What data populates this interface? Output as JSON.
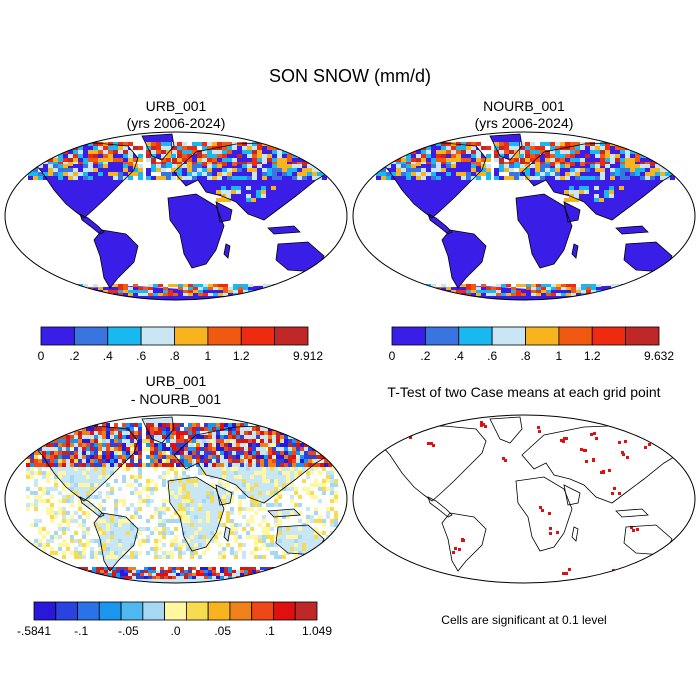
{
  "title": "SON SNOW (mm/d)",
  "panels": [
    {
      "id": "urb",
      "title_line1": "URB_001",
      "title_line2": "(yrs 2006-2024)",
      "colorbar": {
        "colors": [
          "#3a1ee8",
          "#3a74e0",
          "#1ab8f0",
          "#c8e6f4",
          "#f8b41e",
          "#f05a10",
          "#ee2a10",
          "#c02828"
        ],
        "tick_labels": [
          "0",
          ".2",
          ".4",
          ".6",
          ".8",
          "1",
          "1.2",
          "9.912"
        ]
      }
    },
    {
      "id": "nourb",
      "title_line1": "NOURB_001",
      "title_line2": "(yrs 2006-2024)",
      "colorbar": {
        "colors": [
          "#3a1ee8",
          "#3a74e0",
          "#1ab8f0",
          "#c8e6f4",
          "#f8b41e",
          "#f05a10",
          "#ee2a10",
          "#c02828"
        ],
        "tick_labels": [
          "0",
          ".2",
          ".4",
          ".6",
          ".8",
          "1",
          "1.2",
          "9.632"
        ]
      }
    },
    {
      "id": "diff",
      "title_line1": "URB_001",
      "title_line2": "- NOURB_001",
      "colorbar": {
        "colors": [
          "#2a18d8",
          "#2a42e0",
          "#2a72e8",
          "#1a96ee",
          "#50b8f0",
          "#a6d8f4",
          "#fff8a0",
          "#f8dc50",
          "#f8b41e",
          "#f08018",
          "#ee4818",
          "#e01010",
          "#c02828"
        ],
        "tick_labels": [
          "-.5841",
          "-.1",
          "-.05",
          ".0",
          ".05",
          ".1",
          "1.049"
        ]
      }
    },
    {
      "id": "ttest",
      "title_line1": "T-Test of two Case means at each grid point",
      "title_line2": "",
      "note": "Cells are significant at 0.1 level"
    }
  ],
  "chart_data": [
    {
      "type": "heatmap",
      "title": "URB_001 (yrs 2006-2024)",
      "projection": "Robinson",
      "variable": "SON SNOW (mm/d)",
      "levels": [
        0,
        0.2,
        0.4,
        0.6,
        0.8,
        1,
        1.2
      ],
      "max_value": 9.912
    },
    {
      "type": "heatmap",
      "title": "NOURB_001 (yrs 2006-2024)",
      "projection": "Robinson",
      "variable": "SON SNOW (mm/d)",
      "levels": [
        0,
        0.2,
        0.4,
        0.6,
        0.8,
        1,
        1.2
      ],
      "max_value": 9.632
    },
    {
      "type": "heatmap",
      "title": "URB_001 - NOURB_001",
      "projection": "Robinson",
      "levels": [
        -0.1,
        -0.05,
        0.0,
        0.05,
        0.1
      ],
      "min_value": -0.5841,
      "max_value": 1.049
    },
    {
      "type": "heatmap",
      "title": "T-Test of two Case means at each grid point",
      "projection": "Robinson",
      "significance_level": 0.1,
      "significant_color": "#e01010"
    }
  ]
}
